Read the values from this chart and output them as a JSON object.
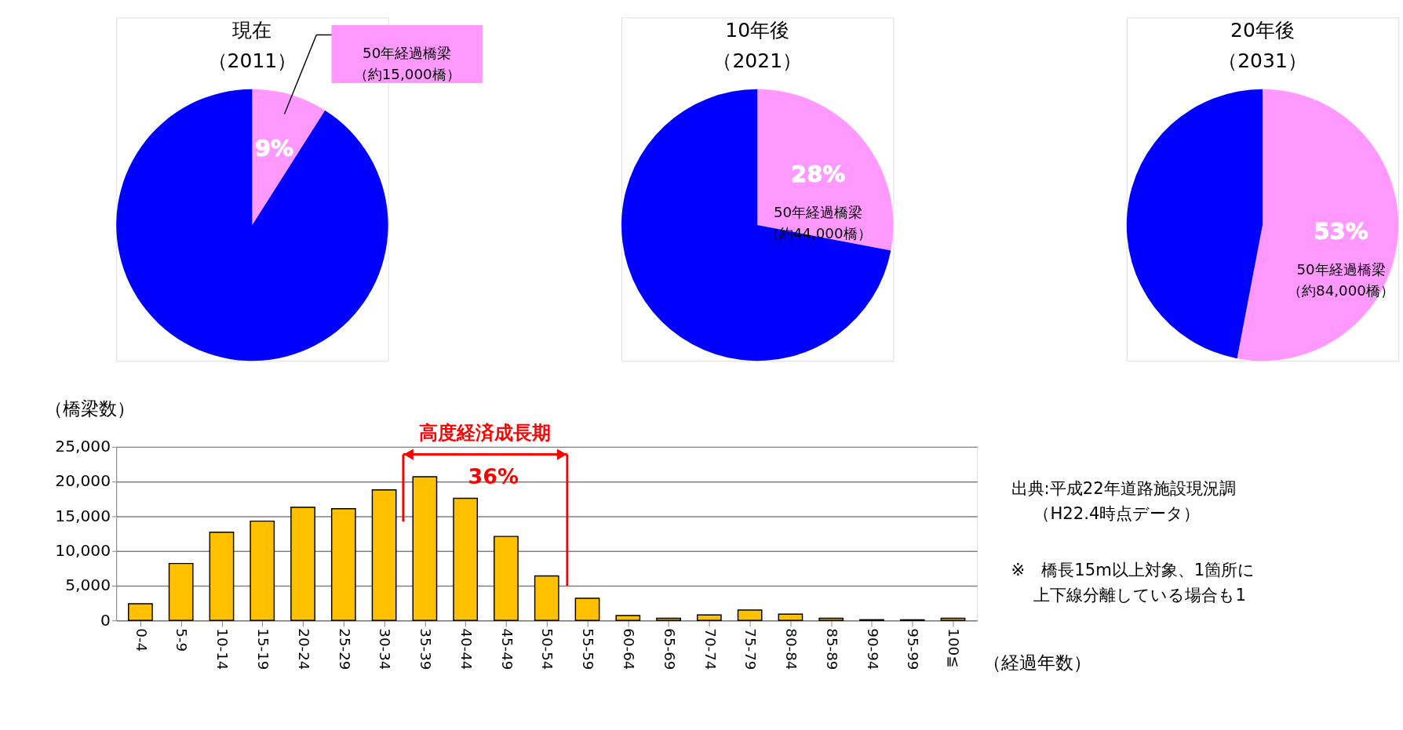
{
  "chart_data": [
    {
      "type": "pie",
      "title": "現在",
      "subtitle": "（2011）",
      "categories": [
        "50年経過橋梁（約15,000橋）",
        null
      ],
      "values": [
        9,
        91
      ],
      "colors": [
        "#ff99ff",
        "#0000ff"
      ],
      "value_labels": [
        "9%",
        null
      ]
    },
    {
      "type": "pie",
      "title": "10年後",
      "subtitle": "（2021）",
      "categories": [
        "50年経過橋梁（約44,000橋）",
        null
      ],
      "values": [
        28,
        72
      ],
      "colors": [
        "#ff99ff",
        "#0000ff"
      ],
      "value_labels": [
        "28%",
        null
      ]
    },
    {
      "type": "pie",
      "title": "20年後",
      "subtitle": "（2031）",
      "categories": [
        "50年経過橋梁（約84,000橋）",
        null
      ],
      "values": [
        53,
        47
      ],
      "colors": [
        "#ff99ff",
        "#0000ff"
      ],
      "value_labels": [
        "53%",
        null
      ]
    },
    {
      "type": "bar",
      "ylabel": "（橋梁数）",
      "xlabel": "（経過年数）",
      "color": "#ffc000",
      "grid": "y",
      "ylim": [
        0,
        25000
      ],
      "yticks": [
        0,
        {
          "value": 5000,
          "label": "5,000"
        },
        {
          "value": 10000,
          "label": "10,000"
        },
        {
          "value": 15000,
          "label": "15,000"
        },
        {
          "value": 20000,
          "label": "20,000"
        },
        {
          "value": 25000,
          "label": "25,000"
        }
      ],
      "categories": [
        "0-4",
        "5-9",
        "10-14",
        "15-19",
        "20-24",
        "25-29",
        "30-34",
        "35-39",
        "40-44",
        "45-49",
        "50-54",
        "55-59",
        "60-64",
        "65-69",
        "70-74",
        "75-79",
        "80-84",
        "85-89",
        "90-94",
        "95-99",
        "100≦"
      ],
      "values": [
        2400,
        8200,
        12700,
        14300,
        16300,
        16100,
        18800,
        20700,
        17600,
        12100,
        6400,
        3200,
        700,
        300,
        800,
        1500,
        900,
        300,
        100,
        100,
        300
      ],
      "annotations": [
        "高度経済成長期",
        "36%",
        "出典:平成22年道路施設現況調",
        "（H22.4時点データ）",
        "※　橋長15m以上対象、1箇所に",
        "上下線分離している場合も1"
      ]
    }
  ]
}
